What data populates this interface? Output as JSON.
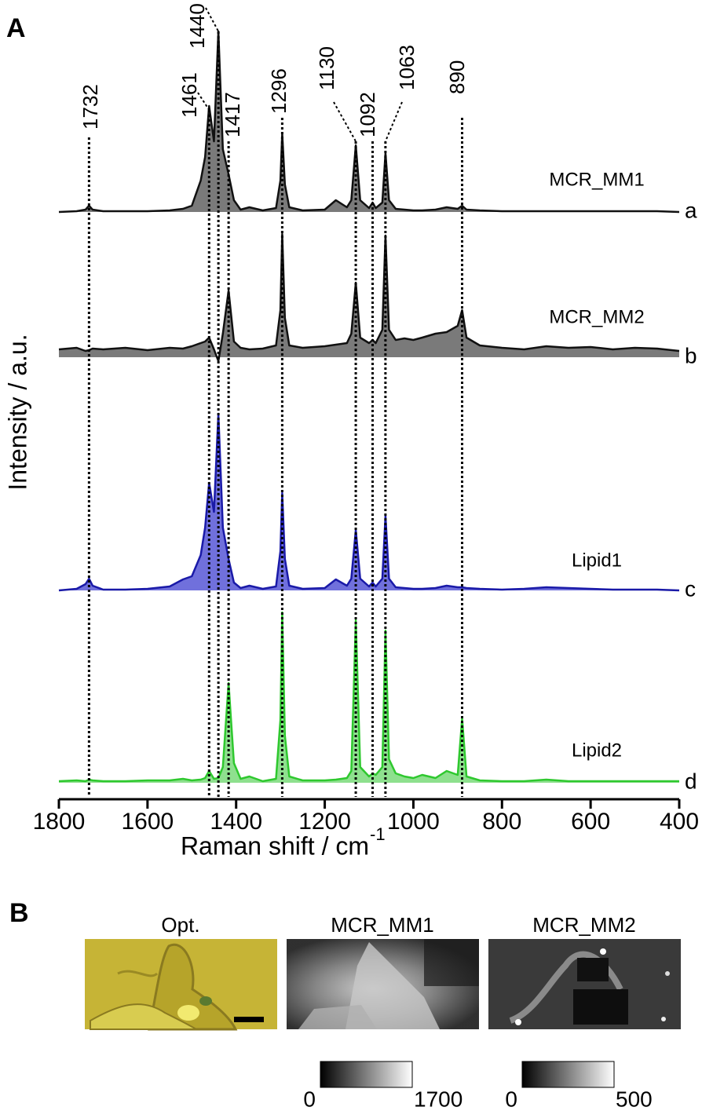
{
  "chart_data": {
    "type": "stacked-spectra",
    "panel_label": "A",
    "y_label": "Intensity / a.u.",
    "x_label": "Raman shift / cm",
    "x_label_sup": "-1",
    "xlim": [
      1800,
      400
    ],
    "xticks": [
      1800,
      1600,
      1400,
      1200,
      1000,
      800,
      600,
      400
    ],
    "peak_lines": [
      1732,
      1461,
      1440,
      1417,
      1296,
      1130,
      1092,
      1063,
      890
    ],
    "x": [
      1800,
      1760,
      1740,
      1732,
      1724,
      1700,
      1650,
      1600,
      1550,
      1520,
      1500,
      1480,
      1470,
      1461,
      1450,
      1440,
      1430,
      1417,
      1405,
      1390,
      1370,
      1340,
      1310,
      1300,
      1296,
      1290,
      1280,
      1250,
      1200,
      1175,
      1150,
      1140,
      1130,
      1120,
      1100,
      1092,
      1085,
      1070,
      1063,
      1055,
      1040,
      1020,
      1000,
      980,
      950,
      925,
      900,
      890,
      880,
      850,
      800,
      750,
      700,
      650,
      600,
      550,
      500,
      450,
      400
    ],
    "series": [
      {
        "name": "MCR_MM1",
        "label": "a",
        "color": "#111111",
        "fill": "#7a7a7a",
        "values": [
          0,
          1,
          3,
          8,
          3,
          1,
          1,
          1,
          2,
          4,
          8,
          40,
          70,
          135,
          90,
          230,
          80,
          48,
          15,
          3,
          6,
          2,
          5,
          40,
          100,
          35,
          6,
          2,
          3,
          15,
          6,
          15,
          85,
          15,
          5,
          12,
          5,
          12,
          75,
          15,
          4,
          3,
          2,
          2,
          3,
          6,
          4,
          8,
          3,
          2,
          1,
          1,
          1,
          1,
          1,
          1,
          1,
          1,
          0
        ]
      },
      {
        "name": "MCR_MM2",
        "label": "b",
        "color": "#111111",
        "fill": "#7a7a7a",
        "values": [
          10,
          12,
          8,
          9,
          11,
          10,
          12,
          9,
          12,
          11,
          14,
          18,
          20,
          25,
          10,
          -5,
          30,
          85,
          20,
          12,
          10,
          11,
          15,
          60,
          157,
          50,
          15,
          12,
          14,
          16,
          18,
          30,
          95,
          25,
          18,
          22,
          18,
          35,
          155,
          35,
          22,
          24,
          22,
          25,
          30,
          32,
          40,
          60,
          25,
          15,
          12,
          10,
          14,
          12,
          13,
          10,
          12,
          11,
          8
        ]
      },
      {
        "name": "Lipid1",
        "label": "c",
        "color": "#1a1aa8",
        "fill": "#7070dc",
        "values": [
          0,
          2,
          8,
          15,
          6,
          1,
          1,
          2,
          5,
          14,
          18,
          45,
          80,
          137,
          100,
          225,
          80,
          40,
          10,
          3,
          6,
          2,
          5,
          50,
          124,
          40,
          6,
          2,
          3,
          14,
          6,
          15,
          77,
          15,
          5,
          10,
          5,
          15,
          95,
          15,
          4,
          3,
          2,
          2,
          3,
          6,
          4,
          4,
          3,
          2,
          1,
          2,
          4,
          3,
          2,
          1,
          1,
          1,
          0
        ]
      },
      {
        "name": "Lipid2",
        "label": "d",
        "color": "#2ec82e",
        "fill": "#8ee08e",
        "values": [
          2,
          3,
          2,
          4,
          3,
          2,
          2,
          3,
          3,
          5,
          3,
          4,
          6,
          15,
          5,
          6,
          20,
          127,
          25,
          5,
          8,
          2,
          5,
          80,
          217,
          60,
          8,
          3,
          3,
          4,
          6,
          15,
          207,
          20,
          8,
          12,
          10,
          20,
          194,
          30,
          12,
          8,
          6,
          10,
          6,
          15,
          10,
          82,
          8,
          3,
          2,
          2,
          4,
          2,
          2,
          2,
          2,
          2,
          2
        ]
      }
    ]
  },
  "panel_b": {
    "label": "B",
    "images": [
      {
        "title": "Opt."
      },
      {
        "title": "MCR_MM1",
        "colorbar": [
          0,
          1700
        ]
      },
      {
        "title": "MCR_MM2",
        "colorbar": [
          0,
          500
        ]
      }
    ]
  }
}
